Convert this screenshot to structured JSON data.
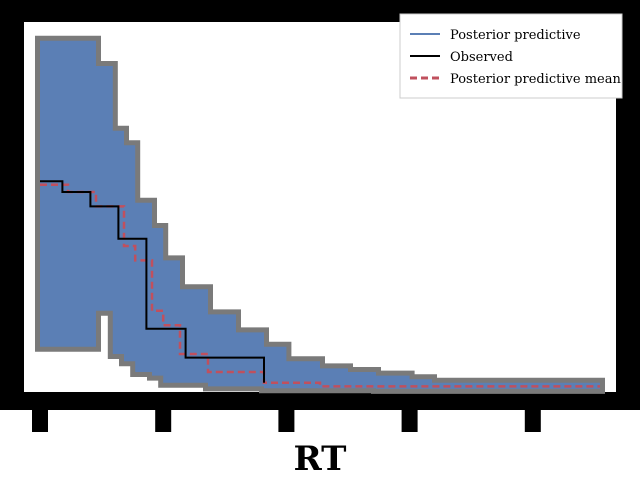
{
  "chart_data": {
    "type": "step",
    "title": "",
    "xlabel": "RT",
    "ylabel": "",
    "xlim": [
      0,
      100
    ],
    "ylim": [
      0,
      100
    ],
    "ticks_x": [
      0,
      22,
      44,
      66,
      88
    ],
    "tick_labels_x": [
      "",
      "",
      "",
      "",
      ""
    ],
    "legend_position": "top-right",
    "series": [
      {
        "name": "Posterior predictive",
        "kind": "band",
        "color": "#5b7fb5",
        "x": [
          0,
          5,
          10,
          13,
          15,
          17,
          20,
          22,
          25,
          30,
          35,
          40,
          44,
          50,
          55,
          60,
          66,
          70,
          80,
          90,
          100
        ],
        "lower": [
          12,
          12,
          22,
          10,
          8,
          5,
          4,
          2,
          2,
          1,
          1,
          0.5,
          0.5,
          0.5,
          0.5,
          0.3,
          0.3,
          0.3,
          0.3,
          0.3,
          0.3
        ],
        "upper": [
          97,
          97,
          90,
          72,
          68,
          52,
          45,
          36,
          28,
          21,
          16,
          12,
          8,
          6,
          5,
          4,
          3,
          2,
          2,
          2,
          2
        ]
      },
      {
        "name": "Observed",
        "kind": "line",
        "color": "#000000",
        "x": [
          0,
          2,
          4,
          5,
          9,
          10,
          14,
          15,
          19,
          20,
          26,
          27,
          40
        ],
        "y": [
          58,
          58,
          55,
          55,
          51,
          51,
          42,
          42,
          17,
          17,
          9,
          9,
          2
        ]
      },
      {
        "name": "Posterior predictive mean",
        "kind": "dashed",
        "color": "#c0505e",
        "x": [
          0,
          5,
          10,
          15,
          17,
          20,
          22,
          25,
          30,
          40,
          50,
          60,
          70,
          80,
          90,
          100
        ],
        "y": [
          57,
          55,
          51,
          40,
          36,
          22,
          18,
          10,
          5,
          2,
          1,
          1,
          1,
          1,
          1,
          1
        ]
      }
    ]
  }
}
